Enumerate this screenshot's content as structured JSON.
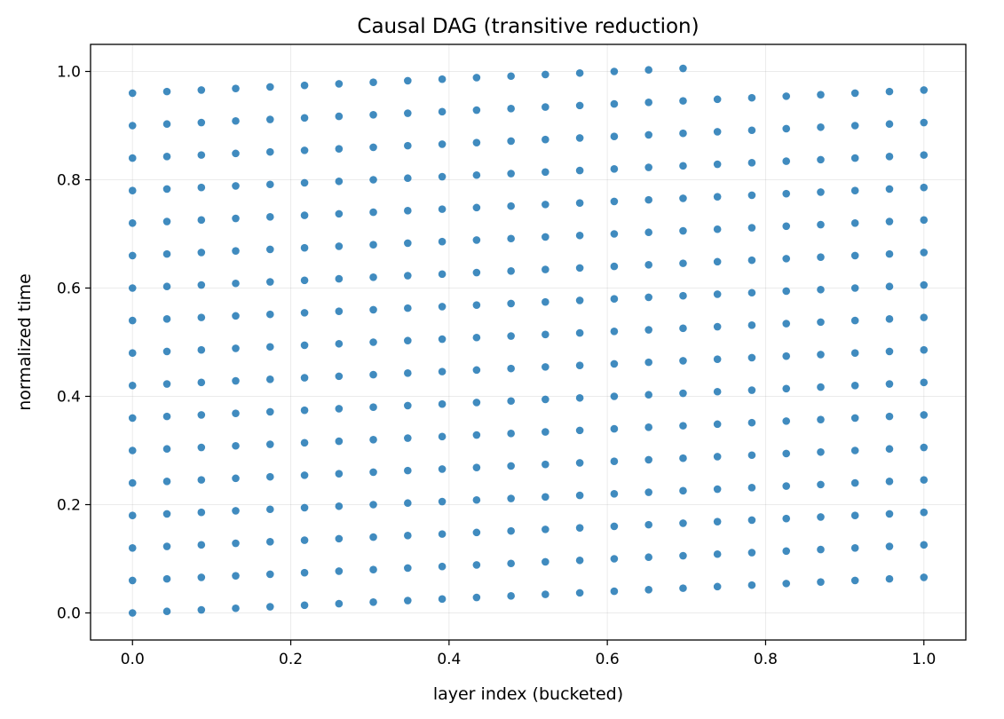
{
  "chart_data": {
    "type": "scatter",
    "title": "Causal DAG (transitive reduction)",
    "xlabel": "layer index (bucketed)",
    "ylabel": "normalized time",
    "xlim": [
      -0.053,
      1.053
    ],
    "ylim": [
      -0.05,
      1.05
    ],
    "xticks": [
      0.0,
      0.2,
      0.4,
      0.6,
      0.8,
      1.0
    ],
    "yticks": [
      0.0,
      0.2,
      0.4,
      0.6,
      0.8,
      1.0
    ],
    "xtick_labels": [
      "0.0",
      "0.2",
      "0.4",
      "0.6",
      "0.8",
      "1.0"
    ],
    "ytick_labels": [
      "0.0",
      "0.2",
      "0.4",
      "0.6",
      "0.8",
      "1.0"
    ],
    "grid": true,
    "marker_color": "#1f77b4",
    "series": [
      {
        "x": [
          0.0,
          0.0,
          0.0,
          0.0,
          0.0,
          0.0,
          0.0,
          0.0,
          0.0,
          0.0,
          0.0,
          0.0,
          0.0,
          0.0,
          0.0,
          0.0,
          0.0,
          0.0435,
          0.0435,
          0.0435,
          0.0435,
          0.0435,
          0.0435,
          0.0435,
          0.0435,
          0.0435,
          0.0435,
          0.0435,
          0.0435,
          0.0435,
          0.0435,
          0.0435,
          0.0435,
          0.0435,
          0.087,
          0.087,
          0.087,
          0.087,
          0.087,
          0.087,
          0.087,
          0.087,
          0.087,
          0.087,
          0.087,
          0.087,
          0.087,
          0.087,
          0.087,
          0.087,
          0.087,
          0.1304,
          0.1304,
          0.1304,
          0.1304,
          0.1304,
          0.1304,
          0.1304,
          0.1304,
          0.1304,
          0.1304,
          0.1304,
          0.1304,
          0.1304,
          0.1304,
          0.1304,
          0.1304,
          0.1304,
          0.1739,
          0.1739,
          0.1739,
          0.1739,
          0.1739,
          0.1739,
          0.1739,
          0.1739,
          0.1739,
          0.1739,
          0.1739,
          0.1739,
          0.1739,
          0.1739,
          0.1739,
          0.1739,
          0.1739,
          0.2174,
          0.2174,
          0.2174,
          0.2174,
          0.2174,
          0.2174,
          0.2174,
          0.2174,
          0.2174,
          0.2174,
          0.2174,
          0.2174,
          0.2174,
          0.2174,
          0.2174,
          0.2174,
          0.2174,
          0.2609,
          0.2609,
          0.2609,
          0.2609,
          0.2609,
          0.2609,
          0.2609,
          0.2609,
          0.2609,
          0.2609,
          0.2609,
          0.2609,
          0.2609,
          0.2609,
          0.2609,
          0.2609,
          0.2609,
          0.3043,
          0.3043,
          0.3043,
          0.3043,
          0.3043,
          0.3043,
          0.3043,
          0.3043,
          0.3043,
          0.3043,
          0.3043,
          0.3043,
          0.3043,
          0.3043,
          0.3043,
          0.3043,
          0.3043,
          0.3478,
          0.3478,
          0.3478,
          0.3478,
          0.3478,
          0.3478,
          0.3478,
          0.3478,
          0.3478,
          0.3478,
          0.3478,
          0.3478,
          0.3478,
          0.3478,
          0.3478,
          0.3478,
          0.3478,
          0.3913,
          0.3913,
          0.3913,
          0.3913,
          0.3913,
          0.3913,
          0.3913,
          0.3913,
          0.3913,
          0.3913,
          0.3913,
          0.3913,
          0.3913,
          0.3913,
          0.3913,
          0.3913,
          0.3913,
          0.4348,
          0.4348,
          0.4348,
          0.4348,
          0.4348,
          0.4348,
          0.4348,
          0.4348,
          0.4348,
          0.4348,
          0.4348,
          0.4348,
          0.4348,
          0.4348,
          0.4348,
          0.4348,
          0.4348,
          0.4783,
          0.4783,
          0.4783,
          0.4783,
          0.4783,
          0.4783,
          0.4783,
          0.4783,
          0.4783,
          0.4783,
          0.4783,
          0.4783,
          0.4783,
          0.4783,
          0.4783,
          0.4783,
          0.4783,
          0.5217,
          0.5217,
          0.5217,
          0.5217,
          0.5217,
          0.5217,
          0.5217,
          0.5217,
          0.5217,
          0.5217,
          0.5217,
          0.5217,
          0.5217,
          0.5217,
          0.5217,
          0.5217,
          0.5217,
          0.5652,
          0.5652,
          0.5652,
          0.5652,
          0.5652,
          0.5652,
          0.5652,
          0.5652,
          0.5652,
          0.5652,
          0.5652,
          0.5652,
          0.5652,
          0.5652,
          0.5652,
          0.5652,
          0.5652,
          0.6087,
          0.6087,
          0.6087,
          0.6087,
          0.6087,
          0.6087,
          0.6087,
          0.6087,
          0.6087,
          0.6087,
          0.6087,
          0.6087,
          0.6087,
          0.6087,
          0.6087,
          0.6087,
          0.6087,
          0.6522,
          0.6522,
          0.6522,
          0.6522,
          0.6522,
          0.6522,
          0.6522,
          0.6522,
          0.6522,
          0.6522,
          0.6522,
          0.6522,
          0.6522,
          0.6522,
          0.6522,
          0.6522,
          0.6522,
          0.6957,
          0.6957,
          0.6957,
          0.6957,
          0.6957,
          0.6957,
          0.6957,
          0.6957,
          0.6957,
          0.6957,
          0.6957,
          0.6957,
          0.6957,
          0.6957,
          0.6957,
          0.6957,
          0.6957,
          0.7391,
          0.7391,
          0.7391,
          0.7391,
          0.7391,
          0.7391,
          0.7391,
          0.7391,
          0.7391,
          0.7391,
          0.7391,
          0.7391,
          0.7391,
          0.7391,
          0.7391,
          0.7391,
          0.7826,
          0.7826,
          0.7826,
          0.7826,
          0.7826,
          0.7826,
          0.7826,
          0.7826,
          0.7826,
          0.7826,
          0.7826,
          0.7826,
          0.7826,
          0.7826,
          0.7826,
          0.7826,
          0.8261,
          0.8261,
          0.8261,
          0.8261,
          0.8261,
          0.8261,
          0.8261,
          0.8261,
          0.8261,
          0.8261,
          0.8261,
          0.8261,
          0.8261,
          0.8261,
          0.8261,
          0.8261,
          0.8696,
          0.8696,
          0.8696,
          0.8696,
          0.8696,
          0.8696,
          0.8696,
          0.8696,
          0.8696,
          0.8696,
          0.8696,
          0.8696,
          0.8696,
          0.8696,
          0.8696,
          0.8696,
          0.913,
          0.913,
          0.913,
          0.913,
          0.913,
          0.913,
          0.913,
          0.913,
          0.913,
          0.913,
          0.913,
          0.913,
          0.913,
          0.913,
          0.913,
          0.913,
          0.9565,
          0.9565,
          0.9565,
          0.9565,
          0.9565,
          0.9565,
          0.9565,
          0.9565,
          0.9565,
          0.9565,
          0.9565,
          0.9565,
          0.9565,
          0.9565,
          0.9565,
          0.9565,
          1.0,
          1.0,
          1.0,
          1.0,
          1.0,
          1.0,
          1.0,
          1.0,
          1.0,
          1.0,
          1.0,
          1.0,
          1.0,
          1.0,
          1.0,
          1.0
        ],
        "y": [
          0.0,
          0.06,
          0.12,
          0.18,
          0.24,
          0.3,
          0.36,
          0.42,
          0.48,
          0.54,
          0.6,
          0.66,
          0.72,
          0.78,
          0.84,
          0.9,
          0.96,
          0.0029,
          0.0629,
          0.1229,
          0.1829,
          0.2429,
          0.3029,
          0.3629,
          0.4229,
          0.4829,
          0.5429,
          0.6029,
          0.6629,
          0.7229,
          0.7829,
          0.8429,
          0.9029,
          0.9629,
          0.0057,
          0.0657,
          0.1257,
          0.1857,
          0.2457,
          0.3057,
          0.3657,
          0.4257,
          0.4857,
          0.5457,
          0.6057,
          0.6657,
          0.7257,
          0.7857,
          0.8457,
          0.9057,
          0.9657,
          0.0086,
          0.0686,
          0.1286,
          0.1886,
          0.2486,
          0.3086,
          0.3686,
          0.4286,
          0.4886,
          0.5486,
          0.6086,
          0.6686,
          0.7286,
          0.7886,
          0.8486,
          0.9086,
          0.9686,
          0.0114,
          0.0714,
          0.1314,
          0.1914,
          0.2514,
          0.3114,
          0.3714,
          0.4314,
          0.4914,
          0.5514,
          0.6114,
          0.6714,
          0.7314,
          0.7914,
          0.8514,
          0.9114,
          0.9714,
          0.0143,
          0.0743,
          0.1343,
          0.1943,
          0.2543,
          0.3143,
          0.3743,
          0.4343,
          0.4943,
          0.5543,
          0.6143,
          0.6743,
          0.7343,
          0.7943,
          0.8543,
          0.9143,
          0.9743,
          0.0171,
          0.0771,
          0.1371,
          0.1971,
          0.2571,
          0.3171,
          0.3771,
          0.4371,
          0.4971,
          0.5571,
          0.6171,
          0.6771,
          0.7371,
          0.7971,
          0.8571,
          0.9171,
          0.9771,
          0.02,
          0.08,
          0.14,
          0.2,
          0.26,
          0.32,
          0.38,
          0.44,
          0.5,
          0.56,
          0.62,
          0.68,
          0.74,
          0.8,
          0.86,
          0.92,
          0.98,
          0.0229,
          0.0829,
          0.1429,
          0.2029,
          0.2629,
          0.3229,
          0.3829,
          0.4429,
          0.5029,
          0.5629,
          0.6229,
          0.6829,
          0.7429,
          0.8029,
          0.8629,
          0.9229,
          0.9829,
          0.0257,
          0.0857,
          0.1457,
          0.2057,
          0.2657,
          0.3257,
          0.3857,
          0.4457,
          0.5057,
          0.5657,
          0.6257,
          0.6857,
          0.7457,
          0.8057,
          0.8657,
          0.9257,
          0.9857,
          0.0286,
          0.0886,
          0.1486,
          0.2086,
          0.2686,
          0.3286,
          0.3886,
          0.4486,
          0.5086,
          0.5686,
          0.6286,
          0.6886,
          0.7486,
          0.8086,
          0.8686,
          0.9286,
          0.9886,
          0.0314,
          0.0914,
          0.1514,
          0.2114,
          0.2714,
          0.3314,
          0.3914,
          0.4514,
          0.5114,
          0.5714,
          0.6314,
          0.6914,
          0.7514,
          0.8114,
          0.8714,
          0.9314,
          0.9914,
          0.0343,
          0.0943,
          0.1543,
          0.2143,
          0.2743,
          0.3343,
          0.3943,
          0.4543,
          0.5143,
          0.5743,
          0.6343,
          0.6943,
          0.7543,
          0.8143,
          0.8743,
          0.9343,
          0.9943,
          0.0371,
          0.0971,
          0.1571,
          0.2171,
          0.2771,
          0.3371,
          0.3971,
          0.4571,
          0.5171,
          0.5771,
          0.6371,
          0.6971,
          0.7571,
          0.8171,
          0.8771,
          0.9371,
          0.9971,
          0.04,
          0.1,
          0.16,
          0.22,
          0.28,
          0.34,
          0.4,
          0.46,
          0.52,
          0.58,
          0.64,
          0.7,
          0.76,
          0.82,
          0.88,
          0.94,
          1.0,
          0.0429,
          0.1029,
          0.1629,
          0.2229,
          0.2829,
          0.3429,
          0.4029,
          0.4629,
          0.5229,
          0.5829,
          0.6429,
          0.7029,
          0.7629,
          0.8229,
          0.8829,
          0.9429,
          1.0029,
          0.0457,
          0.1057,
          0.1657,
          0.2257,
          0.2857,
          0.3457,
          0.4057,
          0.4657,
          0.5257,
          0.5857,
          0.6457,
          0.7057,
          0.7657,
          0.8257,
          0.8857,
          0.9457,
          1.0057,
          0.0486,
          0.1086,
          0.1686,
          0.2286,
          0.2886,
          0.3486,
          0.4086,
          0.4686,
          0.5286,
          0.5886,
          0.6486,
          0.7086,
          0.7686,
          0.8286,
          0.8886,
          0.9486,
          0.0514,
          0.1114,
          0.1714,
          0.2314,
          0.2914,
          0.3514,
          0.4114,
          0.4714,
          0.5314,
          0.5914,
          0.6514,
          0.7114,
          0.7714,
          0.8314,
          0.8914,
          0.9514,
          0.0543,
          0.1143,
          0.1743,
          0.2343,
          0.2943,
          0.3543,
          0.4143,
          0.4743,
          0.5343,
          0.5943,
          0.6543,
          0.7143,
          0.7743,
          0.8343,
          0.8943,
          0.9543,
          0.0571,
          0.1171,
          0.1771,
          0.2371,
          0.2971,
          0.3571,
          0.4171,
          0.4771,
          0.5371,
          0.5971,
          0.6571,
          0.7171,
          0.7771,
          0.8371,
          0.8971,
          0.9571,
          0.06,
          0.12,
          0.18,
          0.24,
          0.3,
          0.36,
          0.42,
          0.48,
          0.54,
          0.6,
          0.66,
          0.72,
          0.78,
          0.84,
          0.9,
          0.96,
          0.0629,
          0.1229,
          0.1829,
          0.2429,
          0.3029,
          0.3629,
          0.4229,
          0.4829,
          0.5429,
          0.6029,
          0.6629,
          0.7229,
          0.7829,
          0.8429,
          0.9029,
          0.9629,
          0.0657,
          0.1257,
          0.1857,
          0.2457,
          0.3057,
          0.3657,
          0.4257,
          0.4857,
          0.5457,
          0.6057,
          0.6657,
          0.7257,
          0.7857,
          0.8457,
          0.9057,
          0.9657
        ]
      }
    ]
  }
}
